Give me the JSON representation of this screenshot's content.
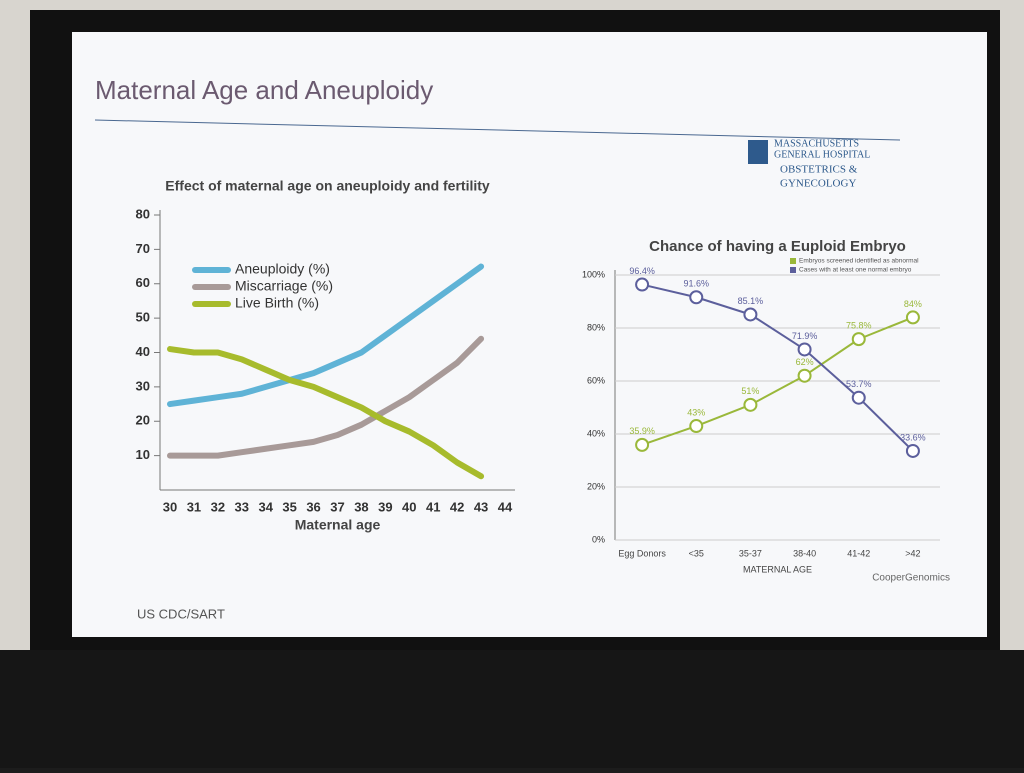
{
  "slide": {
    "title": "Maternal Age and Aneuploidy",
    "logo": [
      "MASSACHUSETTS",
      "GENERAL HOSPITAL",
      "OBSTETRICS &",
      "GYNECOLOGY"
    ],
    "source": "US CDC/SART",
    "credit": "CooperGenomics"
  },
  "chart_data": [
    {
      "type": "line",
      "title": "Effect of maternal age on aneuploidy and fertility",
      "x_label": "Maternal age",
      "x": [
        30,
        31,
        32,
        33,
        34,
        35,
        36,
        37,
        38,
        39,
        40,
        41,
        42,
        43
      ],
      "xlim": [
        30,
        44
      ],
      "xticks": [
        30,
        31,
        32,
        33,
        34,
        35,
        36,
        37,
        38,
        39,
        40,
        41,
        42,
        43,
        44
      ],
      "ylim": [
        0,
        80
      ],
      "yticks": [
        10,
        20,
        30,
        40,
        50,
        60,
        70,
        80
      ],
      "grid": false,
      "legend": "upper-left",
      "series": [
        {
          "name": "Aneuploidy (%)",
          "color": "#5fb3d6",
          "values": [
            25,
            26,
            27,
            28,
            30,
            32,
            34,
            37,
            40,
            45,
            50,
            55,
            60,
            65
          ]
        },
        {
          "name": "Miscarriage (%)",
          "color": "#a89a98",
          "values": [
            10,
            10,
            10,
            11,
            12,
            13,
            14,
            16,
            19,
            23,
            27,
            32,
            37,
            44
          ]
        },
        {
          "name": "Live Birth (%)",
          "color": "#a7bb2c",
          "values": [
            41,
            40,
            40,
            38,
            35,
            32,
            30,
            27,
            24,
            20,
            17,
            13,
            8,
            4
          ]
        }
      ]
    },
    {
      "type": "line",
      "title": "Chance of having a Euploid Embryo",
      "x_label": "MATERNAL AGE",
      "categories": [
        "Egg Donors",
        "<35",
        "35-37",
        "38-40",
        "41-42",
        ">42"
      ],
      "ylim": [
        0,
        100
      ],
      "yticks": [
        {
          "value": 0,
          "label": "0%"
        },
        {
          "value": 20,
          "label": "20%"
        },
        {
          "value": 40,
          "label": "40%"
        },
        {
          "value": 60,
          "label": "60%"
        },
        {
          "value": 80,
          "label": "80%"
        },
        {
          "value": 100,
          "label": "100%"
        }
      ],
      "grid": true,
      "markers": true,
      "legend": "upper-right",
      "series": [
        {
          "name": "Embryos screened identified as abnormal",
          "color": "#9ab83a",
          "values": [
            35.9,
            43,
            51,
            62,
            75.8,
            84
          ],
          "value_labels": [
            "35.9%",
            "43%",
            "51%",
            "62%",
            "75.8%",
            "84%"
          ]
        },
        {
          "name": "Cases with at least one normal embryo",
          "color": "#5c5f9c",
          "values": [
            96.4,
            91.6,
            85.1,
            71.9,
            53.7,
            33.6
          ],
          "value_labels": [
            "96.4%",
            "91.6%",
            "85.1%",
            "71.9%",
            "53.7%",
            "33.6%"
          ]
        }
      ]
    }
  ]
}
